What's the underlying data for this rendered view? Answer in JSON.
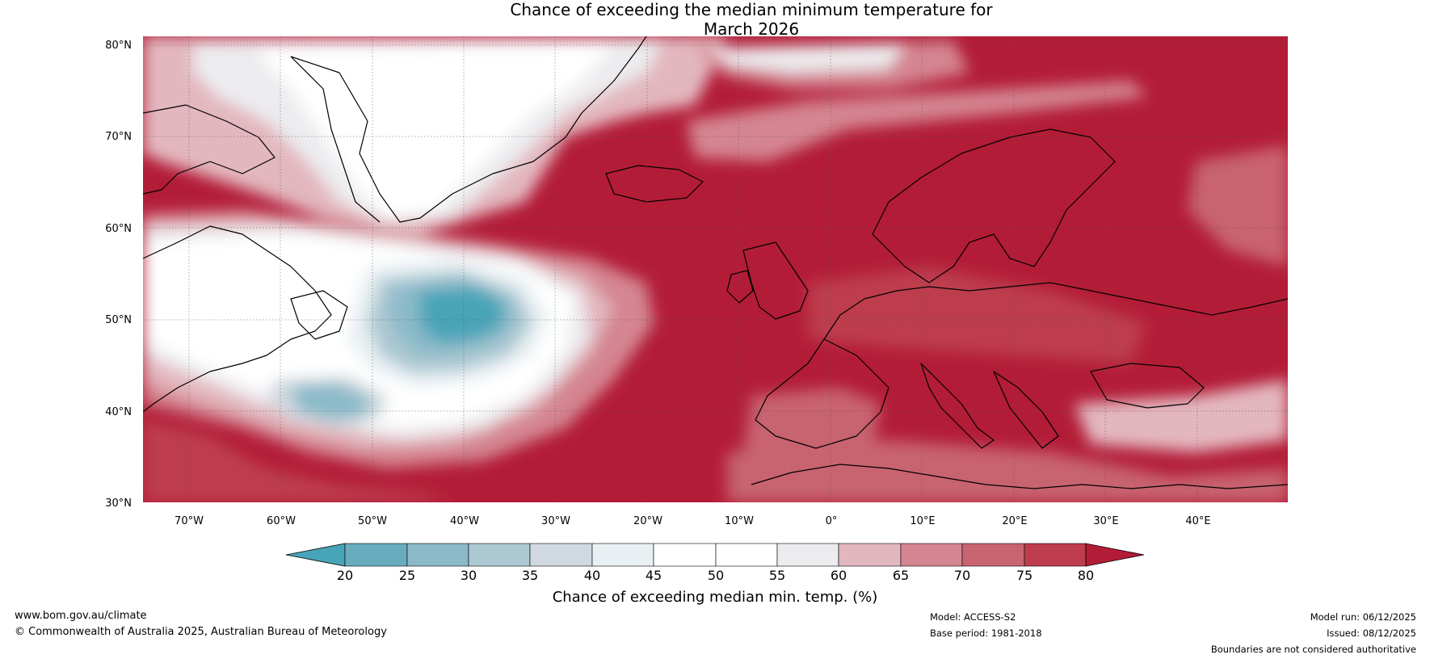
{
  "title": {
    "line1": "Chance of exceeding the median minimum temperature for",
    "line2": "March 2026"
  },
  "map": {
    "region": "North Atlantic and Europe",
    "lat_labels": [
      "80°N",
      "70°N",
      "60°N",
      "50°N",
      "40°N",
      "30°N"
    ],
    "lat_values": [
      80,
      70,
      60,
      50,
      40,
      30
    ],
    "lon_labels": [
      "70°W",
      "60°W",
      "50°W",
      "40°W",
      "30°W",
      "20°W",
      "10°W",
      "0°",
      "10°E",
      "20°E",
      "30°E",
      "40°E"
    ],
    "lon_values": [
      -70,
      -60,
      -50,
      -40,
      -30,
      -20,
      -10,
      0,
      10,
      20,
      30,
      40
    ],
    "lon_range": [
      -75,
      50
    ],
    "lat_range": [
      30,
      81
    ]
  },
  "colorbar": {
    "label": "Chance of exceeding median min. temp. (%)",
    "ticks": [
      "20",
      "25",
      "30",
      "35",
      "40",
      "45",
      "50",
      "55",
      "60",
      "65",
      "70",
      "75",
      "80"
    ],
    "colors": [
      "#48a4b8",
      "#69acbd",
      "#8bbac9",
      "#acc8d2",
      "#cfd9df",
      "#e8f0f3",
      "#ffffff",
      "#ffffff",
      "#ececef",
      "#e3b7bf",
      "#d48590",
      "#c8646f",
      "#bd3d4e",
      "#b31c37"
    ]
  },
  "footer": {
    "url": "www.bom.gov.au/climate",
    "copyright": "© Commonwealth of Australia 2025, Australian Bureau of Meteorology",
    "model": "Model: ACCESS-S2",
    "base_period": "Base period: 1981-2018",
    "model_run": "Model run: 06/12/2025",
    "issued": "Issued: 08/12/2025",
    "disclaimer": "Boundaries are not considered authoritative"
  }
}
